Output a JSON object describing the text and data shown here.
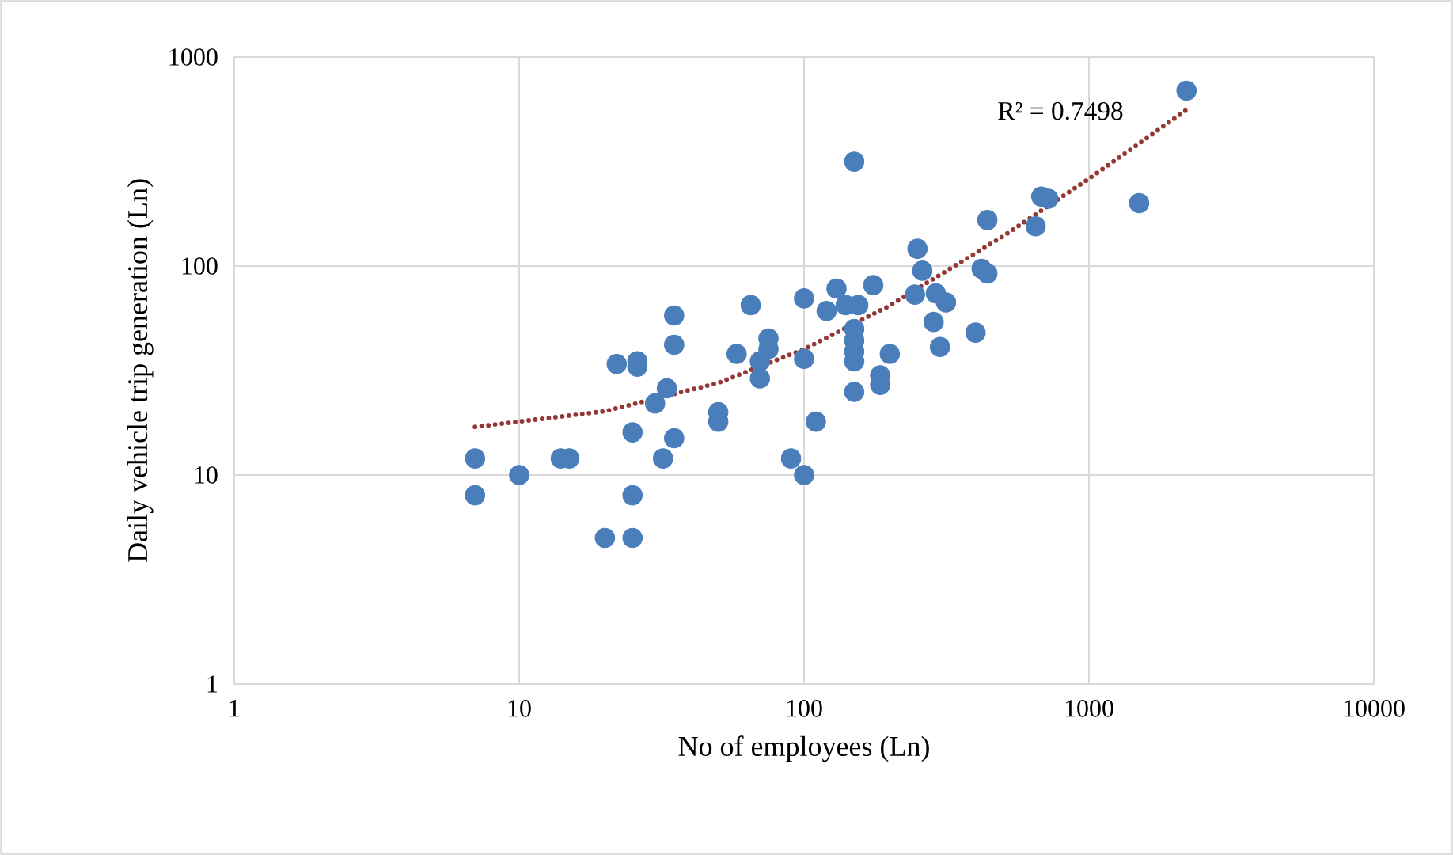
{
  "chart_data": {
    "type": "scatter",
    "xlabel": "No of employees (Ln)",
    "ylabel": "Daily vehicle trip generation (Ln)",
    "log": "xy",
    "grid": true,
    "xlim": [
      1,
      10000
    ],
    "ylim": [
      1,
      1000
    ],
    "xticks": [
      1,
      10,
      100,
      1000,
      10000
    ],
    "yticks": [
      1,
      10,
      100,
      1000
    ],
    "annotations": [
      "R² = 0.7498"
    ],
    "series": [
      {
        "color": "#4a7ebb",
        "marker": "circle",
        "x": [
          7,
          7,
          10,
          14,
          15,
          20,
          25,
          25,
          25,
          22,
          26,
          26,
          30,
          33,
          35,
          35,
          35,
          32,
          50,
          50,
          58,
          65,
          70,
          70,
          75,
          75,
          90,
          100,
          100,
          100,
          150,
          120,
          130,
          140,
          155,
          175,
          150,
          150,
          150,
          150,
          150,
          200,
          185,
          185,
          110,
          250,
          260,
          245,
          290,
          315,
          285,
          300,
          400,
          420,
          440,
          440,
          650,
          680,
          720,
          1500,
          2200
        ],
        "values": [
          12,
          8,
          10,
          12,
          12,
          5,
          5,
          8,
          16,
          34,
          35,
          33,
          22,
          26,
          58,
          42,
          15,
          12,
          20,
          18,
          38,
          65,
          35,
          29,
          45,
          40,
          12,
          10,
          36,
          70,
          316,
          61,
          78,
          65,
          65,
          81,
          50,
          44,
          39,
          35,
          25,
          38,
          30,
          27,
          18,
          121,
          95,
          73,
          74,
          67,
          54,
          41,
          48,
          97,
          92,
          166,
          155,
          215,
          210,
          200,
          690
        ]
      },
      {
        "type": "line",
        "color": "#953735",
        "line_style": "dotted",
        "x": [
          7,
          20,
          50,
          100,
          200,
          500,
          1000,
          1500,
          2200
        ],
        "values": [
          17,
          20.2,
          27.6,
          40,
          64.7,
          139,
          262,
          386,
          559
        ]
      }
    ]
  }
}
